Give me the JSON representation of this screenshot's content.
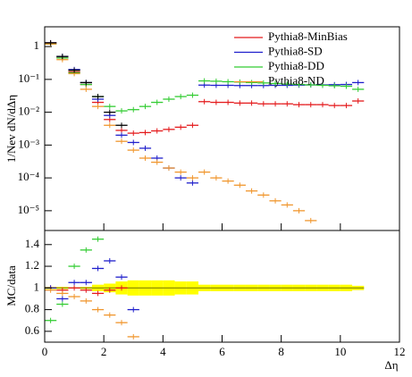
{
  "chart_data": [
    {
      "type": "line",
      "ylabel": "1/Nev dN/dΔη",
      "log_y": true,
      "legend": "upper right",
      "xlim": [
        0,
        12
      ],
      "xticks": [
        0,
        2,
        4,
        6,
        8,
        10,
        12
      ],
      "ylim": [
        2.5e-06,
        4
      ],
      "yticks": [
        {
          "value": 1e-05,
          "label": "10⁻⁵"
        },
        {
          "value": 0.0001,
          "label": "10⁻⁴"
        },
        {
          "value": 0.001,
          "label": "10⁻³"
        },
        {
          "value": 0.01,
          "label": "10⁻²"
        },
        {
          "value": 0.1,
          "label": "10⁻¹"
        },
        1
      ],
      "x": [
        0.2,
        0.6,
        1,
        1.4,
        1.8,
        2.2,
        2.6,
        3,
        3.4,
        3.8,
        4.2,
        4.6,
        5,
        5.4,
        5.8,
        6.2,
        6.6,
        7,
        7.4,
        7.8,
        8.2,
        8.6,
        9,
        9.4,
        9.8,
        10.2,
        10.6
      ],
      "data": {
        "color": "#000000",
        "values": [
          1.3,
          0.5,
          0.19,
          0.08,
          0.03,
          0.01,
          0.004,
          null,
          null,
          null,
          null,
          null,
          null,
          null,
          null,
          null,
          null,
          null,
          null,
          null,
          null,
          null,
          null,
          null,
          null,
          null,
          null
        ]
      },
      "series": [
        {
          "name": "Pythia8-MinBias",
          "color": "#e41a1c",
          "values": [
            1.3,
            0.45,
            0.17,
            0.07,
            0.02,
            0.006,
            0.0028,
            0.0023,
            0.0024,
            0.0027,
            0.003,
            0.0035,
            0.004,
            0.021,
            0.02,
            0.02,
            0.019,
            0.019,
            0.018,
            0.018,
            0.018,
            0.017,
            0.017,
            0.017,
            0.016,
            0.016,
            0.022
          ]
        },
        {
          "name": "Pythia8-SD",
          "color": "#1f1fcc",
          "values": [
            1.3,
            0.5,
            0.2,
            0.08,
            0.025,
            0.008,
            0.002,
            0.0012,
            0.0008,
            0.0004,
            0.0002,
            0.0001,
            7e-05,
            0.067,
            0.066,
            0.066,
            0.065,
            0.065,
            0.065,
            0.066,
            0.066,
            0.067,
            0.068,
            0.068,
            0.069,
            0.07,
            0.08
          ]
        },
        {
          "name": "Pythia8-DD",
          "color": "#33cc33",
          "values": [
            1.2,
            0.45,
            0.16,
            0.07,
            0.03,
            0.015,
            0.011,
            0.012,
            0.015,
            0.02,
            0.025,
            0.03,
            0.033,
            0.09,
            0.088,
            0.085,
            0.083,
            0.08,
            0.078,
            0.075,
            0.072,
            0.07,
            0.068,
            0.066,
            0.064,
            0.062,
            0.05
          ]
        },
        {
          "name": "Pythia8-ND",
          "color": "#f0962d",
          "values": [
            1.2,
            0.4,
            0.15,
            0.05,
            0.015,
            0.004,
            0.0013,
            0.0007,
            0.0004,
            0.0003,
            0.0002,
            0.00015,
            0.0001,
            0.00015,
            0.0001,
            8e-05,
            6e-05,
            4e-05,
            3e-05,
            2e-05,
            1.5e-05,
            1e-05,
            5e-06,
            null,
            null,
            null,
            null
          ]
        }
      ]
    },
    {
      "type": "line",
      "ylabel": "MC/data",
      "xlabel": "Δη",
      "xlim": [
        0,
        12
      ],
      "xticks": [
        0,
        2,
        4,
        6,
        8,
        10,
        12
      ],
      "ylim": [
        0.5,
        1.53
      ],
      "yticks": [
        0.6,
        0.8,
        1,
        1.2,
        1.4
      ],
      "x": [
        0.2,
        0.6,
        1,
        1.4,
        1.8,
        2.2,
        2.6,
        3,
        3.4,
        3.8,
        4.2,
        4.6,
        5,
        5.4,
        5.8,
        6.2,
        6.6,
        7,
        7.4,
        7.8,
        8.2,
        8.6,
        9,
        9.4,
        9.8,
        10.2,
        10.6
      ],
      "band": {
        "color": "#ffff00",
        "lower": [
          0.99,
          0.99,
          0.995,
          0.99,
          0.97,
          0.96,
          0.94,
          0.93,
          0.93,
          0.93,
          0.93,
          0.94,
          0.94,
          0.97,
          0.97,
          0.97,
          0.97,
          0.97,
          0.97,
          0.97,
          0.97,
          0.97,
          0.97,
          0.97,
          0.97,
          0.97,
          0.98
        ],
        "upper": [
          1.01,
          1.01,
          1.005,
          1.01,
          1.03,
          1.04,
          1.06,
          1.07,
          1.07,
          1.07,
          1.07,
          1.06,
          1.06,
          1.03,
          1.03,
          1.03,
          1.03,
          1.03,
          1.03,
          1.03,
          1.03,
          1.03,
          1.03,
          1.03,
          1.03,
          1.03,
          1.02
        ]
      },
      "series": [
        {
          "color": "#e41a1c",
          "values": [
            1,
            0.98,
            1,
            0.98,
            0.95,
            0.98,
            1,
            null,
            null,
            null,
            null,
            null,
            null,
            null,
            null,
            null,
            null,
            null,
            null,
            null,
            null,
            null,
            null,
            null,
            null,
            null,
            null
          ]
        },
        {
          "color": "#1f1fcc",
          "values": [
            1,
            0.9,
            1.05,
            1.05,
            1.18,
            1.25,
            1.1,
            0.8,
            null,
            null,
            null,
            null,
            null,
            null,
            null,
            null,
            null,
            null,
            null,
            null,
            null,
            null,
            null,
            null,
            null,
            null,
            null
          ]
        },
        {
          "color": "#33cc33",
          "values": [
            0.7,
            0.85,
            1.2,
            1.35,
            1.45,
            null,
            null,
            null,
            null,
            null,
            null,
            null,
            null,
            null,
            null,
            null,
            null,
            null,
            null,
            null,
            null,
            null,
            null,
            null,
            null,
            null,
            null
          ]
        },
        {
          "color": "#f0962d",
          "values": [
            0.98,
            0.95,
            0.92,
            0.88,
            0.8,
            0.75,
            0.68,
            0.55,
            null,
            null,
            null,
            null,
            null,
            null,
            null,
            null,
            null,
            null,
            null,
            null,
            null,
            null,
            null,
            null,
            null,
            null,
            null
          ]
        }
      ]
    }
  ]
}
